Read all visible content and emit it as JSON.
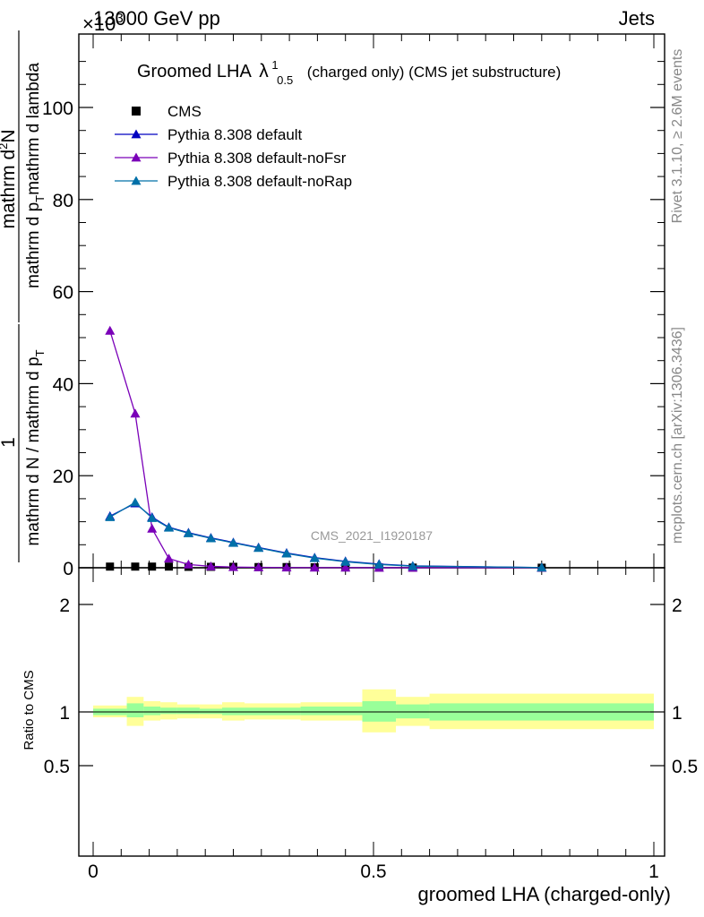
{
  "header": {
    "energy_label": "13000 GeV pp",
    "process_label": "Jets",
    "exponent_label": "×10",
    "exponent_sup": "3"
  },
  "title": {
    "main": "Groomed LHA",
    "lambda": "λ",
    "lambda_sup": "1",
    "lambda_sub": "0.5",
    "rest": "(charged only) (CMS jet substructure)"
  },
  "y_axis_label": {
    "numerator_left": "1",
    "denominator_left": "mathrm d N / mathrm d p",
    "denominator_left_sub": "T",
    "numerator_right": "mathrm d",
    "numerator_right_sup": "2",
    "numerator_right_tail": "N",
    "denominator_right": "mathrm d p",
    "denominator_right_sub": "T",
    "denominator_right_tail": "mathrm d lambda"
  },
  "side_labels": {
    "rivet": "Rivet 3.1.10, ≥ 2.6M events",
    "mcplots": "mcplots.cern.ch [arXiv:1306.3436]"
  },
  "watermark": "CMS_2021_I1920187",
  "ratio_ylabel": "Ratio to CMS",
  "x_axis_label": "groomed LHA (charged-only)",
  "legend": [
    {
      "name": "CMS",
      "color": "#000000",
      "marker": "square"
    },
    {
      "name": "Pythia 8.308 default",
      "color": "#0000c0",
      "marker": "triangle"
    },
    {
      "name": "Pythia 8.308 default-noFsr",
      "color": "#7a00b8",
      "marker": "triangle"
    },
    {
      "name": "Pythia 8.308 default-noRap",
      "color": "#0070a8",
      "marker": "triangle"
    }
  ],
  "chart_data": [
    {
      "type": "line",
      "xlim": [
        0,
        1
      ],
      "ylim": [
        0,
        115
      ],
      "y_scale_factor": "×10^3",
      "x_ticks": [
        0,
        0.5,
        1
      ],
      "x_tick_labels": [
        "0",
        "0.5",
        "1"
      ],
      "y_ticks": [
        0,
        20,
        40,
        60,
        80,
        100
      ],
      "y_tick_labels": [
        "0",
        "20",
        "40",
        "60",
        "80",
        "100"
      ],
      "x": [
        0.03,
        0.075,
        0.105,
        0.135,
        0.17,
        0.21,
        0.25,
        0.295,
        0.345,
        0.395,
        0.45,
        0.51,
        0.57,
        0.8
      ],
      "series": [
        {
          "name": "CMS",
          "values": [
            0.25,
            0.25,
            0.25,
            0.25,
            0.2,
            0.2,
            0.2,
            0.15,
            0.15,
            0.1,
            0.08,
            0.05,
            0.03,
            0.01
          ]
        },
        {
          "name": "Pythia 8.308 default",
          "values": [
            11.2,
            14.0,
            11.0,
            8.8,
            7.6,
            6.5,
            5.5,
            4.4,
            3.2,
            2.2,
            1.4,
            0.8,
            0.4,
            0.05
          ]
        },
        {
          "name": "Pythia 8.308 default-noFsr",
          "values": [
            51.5,
            33.5,
            8.5,
            2.0,
            0.7,
            0.3,
            0.15,
            0.1,
            0.05,
            0.03,
            0.02,
            0.01,
            0.01,
            0.0
          ]
        },
        {
          "name": "Pythia 8.308 default-noRap",
          "values": [
            11.0,
            14.2,
            10.8,
            8.7,
            7.5,
            6.4,
            5.4,
            4.3,
            3.1,
            2.1,
            1.3,
            0.7,
            0.35,
            0.05
          ]
        }
      ]
    },
    {
      "type": "area",
      "xlim": [
        0,
        1
      ],
      "ylim": [
        0.4,
        2.3
      ],
      "y_ticks": [
        0.5,
        1,
        2
      ],
      "y_tick_labels": [
        "0.5",
        "1",
        "2"
      ],
      "reference_line": 1,
      "bins": [
        {
          "x0": 0.0,
          "x1": 0.06,
          "stat_lo": 0.97,
          "stat_hi": 1.03,
          "tot_lo": 0.95,
          "tot_hi": 1.06
        },
        {
          "x0": 0.06,
          "x1": 0.09,
          "stat_lo": 0.95,
          "stat_hi": 1.08,
          "tot_lo": 0.87,
          "tot_hi": 1.14
        },
        {
          "x0": 0.09,
          "x1": 0.12,
          "stat_lo": 0.97,
          "stat_hi": 1.05,
          "tot_lo": 0.92,
          "tot_hi": 1.1
        },
        {
          "x0": 0.12,
          "x1": 0.15,
          "stat_lo": 0.98,
          "stat_hi": 1.04,
          "tot_lo": 0.93,
          "tot_hi": 1.09
        },
        {
          "x0": 0.15,
          "x1": 0.19,
          "stat_lo": 0.98,
          "stat_hi": 1.04,
          "tot_lo": 0.94,
          "tot_hi": 1.07
        },
        {
          "x0": 0.19,
          "x1": 0.23,
          "stat_lo": 0.98,
          "stat_hi": 1.03,
          "tot_lo": 0.94,
          "tot_hi": 1.07
        },
        {
          "x0": 0.23,
          "x1": 0.27,
          "stat_lo": 0.97,
          "stat_hi": 1.04,
          "tot_lo": 0.92,
          "tot_hi": 1.09
        },
        {
          "x0": 0.27,
          "x1": 0.37,
          "stat_lo": 0.97,
          "stat_hi": 1.04,
          "tot_lo": 0.93,
          "tot_hi": 1.08
        },
        {
          "x0": 0.37,
          "x1": 0.48,
          "stat_lo": 0.97,
          "stat_hi": 1.05,
          "tot_lo": 0.92,
          "tot_hi": 1.09
        },
        {
          "x0": 0.48,
          "x1": 0.54,
          "stat_lo": 0.91,
          "stat_hi": 1.1,
          "tot_lo": 0.81,
          "tot_hi": 1.21
        },
        {
          "x0": 0.54,
          "x1": 0.6,
          "stat_lo": 0.94,
          "stat_hi": 1.07,
          "tot_lo": 0.87,
          "tot_hi": 1.14
        },
        {
          "x0": 0.6,
          "x1": 1.0,
          "stat_lo": 0.92,
          "stat_hi": 1.08,
          "tot_lo": 0.84,
          "tot_hi": 1.17
        }
      ]
    }
  ],
  "colors": {
    "stat_band": "#99ff99",
    "total_band": "#ffff99"
  }
}
